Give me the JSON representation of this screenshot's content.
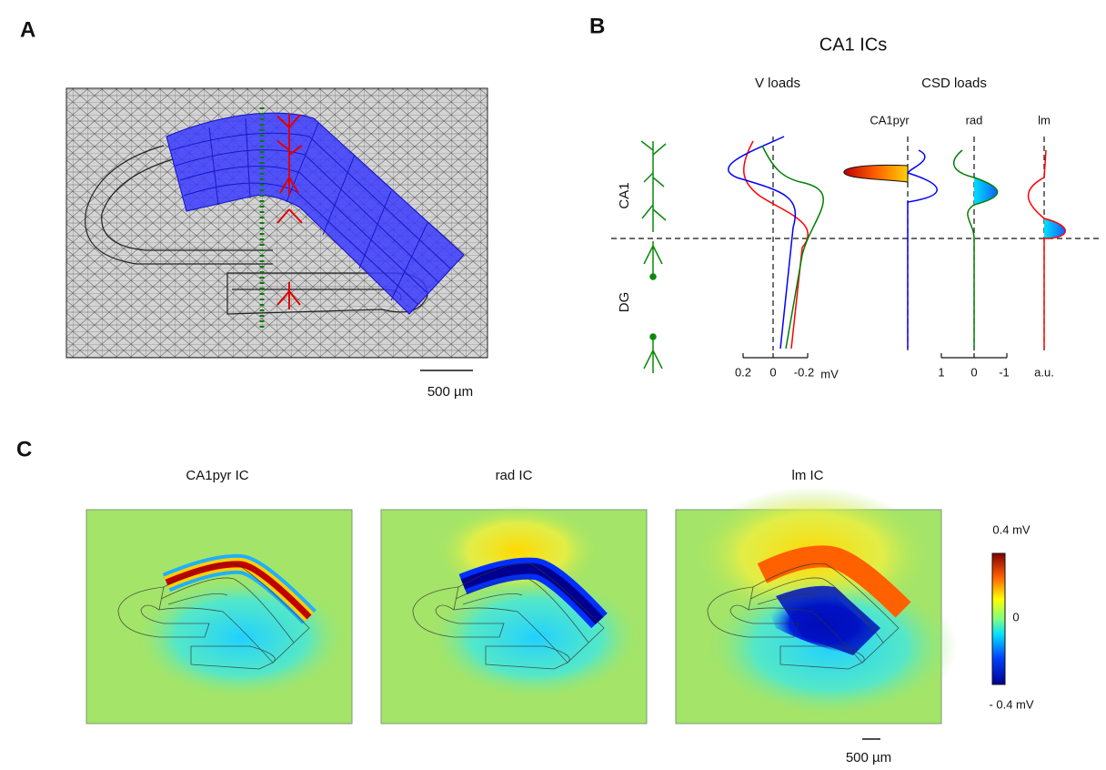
{
  "panel_a": {
    "label": "A",
    "scale_bar": "500 µm"
  },
  "panel_b": {
    "label": "B",
    "title": "CA1 ICs",
    "layers": [
      "CA1",
      "DG"
    ],
    "v_loads": {
      "title": "V loads",
      "ticks": [
        "0.2",
        "0",
        "-0.2"
      ],
      "unit": "mV"
    },
    "csd_loads": {
      "title": "CSD loads",
      "columns": [
        "CA1pyr",
        "rad",
        "lm"
      ],
      "ticks": [
        "1",
        "0",
        "-1"
      ],
      "unit": "a.u."
    }
  },
  "panel_c": {
    "label": "C",
    "maps": [
      "CA1pyr IC",
      "rad IC",
      "lm IC"
    ],
    "colorbar": {
      "max": "0.4 mV",
      "mid": "0",
      "min": "- 0.4 mV"
    },
    "scale_bar": "500 µm"
  }
}
